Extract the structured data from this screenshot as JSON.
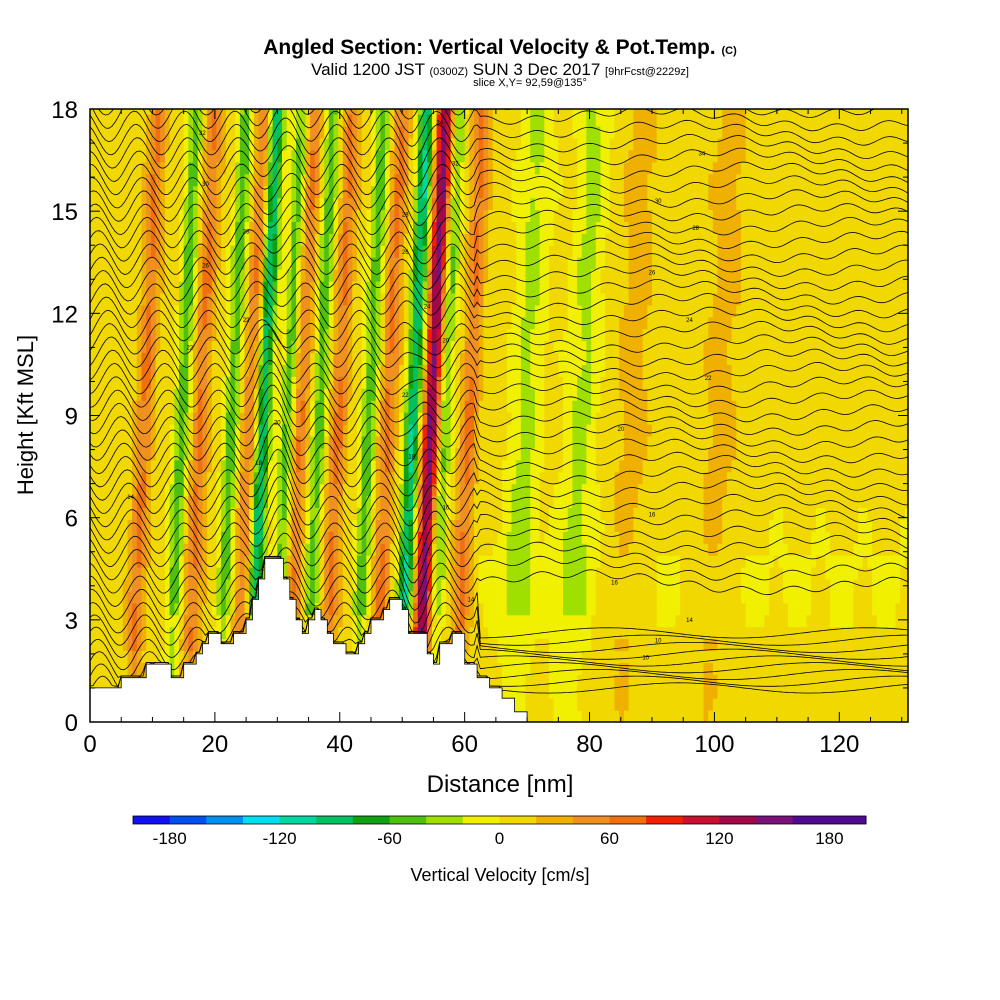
{
  "title": {
    "main": "Angled Section: Vertical Velocity & Pot.Temp.",
    "units_tag": "(C)"
  },
  "subtitle": {
    "valid_prefix": "Valid 1200 JST",
    "utc": "(0300Z)",
    "date": "SUN 3 Dec 2017",
    "forecast": "[9hrFcst@2229z]",
    "slice": "slice X,Y= 92,59@135°"
  },
  "chart_data": {
    "type": "heatmap",
    "title": "Angled Section: Vertical Velocity & Pot.Temp.",
    "xlabel": "Distance [nm]",
    "ylabel": "Height [Kft MSL]",
    "xlim": [
      0,
      131
    ],
    "ylim": [
      0,
      18
    ],
    "x_ticks": [
      0,
      20,
      40,
      60,
      80,
      100,
      120
    ],
    "y_ticks": [
      0,
      3,
      6,
      9,
      12,
      15,
      18
    ],
    "colorbar": {
      "label": "Vertical Velocity [cm/s]",
      "range": [
        -200,
        200
      ],
      "tick_values": [
        -180,
        -120,
        -60,
        0,
        60,
        120,
        180
      ],
      "tick_labels": [
        "-180",
        "-120",
        "-60",
        "0",
        "60",
        "120",
        "180"
      ],
      "colors": [
        "#1010f0",
        "#0050f0",
        "#0090f0",
        "#00e0f0",
        "#00d8a0",
        "#00c060",
        "#10a010",
        "#50c010",
        "#a0e000",
        "#f0f000",
        "#f0d800",
        "#f0b000",
        "#f09020",
        "#f07010",
        "#f02000",
        "#c81030",
        "#a00848",
        "#7a107a",
        "#500a90",
        "#500a90"
      ]
    },
    "updraft_bands_x_nm": [
      8,
      17,
      25,
      33,
      39,
      47,
      54,
      60,
      86,
      100
    ],
    "downdraft_bands_x_nm": [
      14,
      22,
      27,
      31,
      36,
      44,
      51,
      56,
      69,
      78
    ],
    "terrain": [
      [
        0,
        1
      ],
      [
        5,
        1
      ],
      [
        5,
        1.3
      ],
      [
        9,
        1.3
      ],
      [
        9,
        1.7
      ],
      [
        13,
        1.7
      ],
      [
        13,
        1.3
      ],
      [
        15,
        1.3
      ],
      [
        15,
        1.7
      ],
      [
        17,
        1.7
      ],
      [
        17,
        2
      ],
      [
        18,
        2
      ],
      [
        18,
        2.3
      ],
      [
        19,
        2.3
      ],
      [
        19,
        2.6
      ],
      [
        21,
        2.6
      ],
      [
        21,
        2.3
      ],
      [
        23,
        2.3
      ],
      [
        23,
        2.6
      ],
      [
        25,
        2.6
      ],
      [
        25,
        3
      ],
      [
        26,
        3
      ],
      [
        26,
        3.6
      ],
      [
        27,
        3.6
      ],
      [
        27,
        4.2
      ],
      [
        28,
        4.2
      ],
      [
        28,
        4.8
      ],
      [
        31,
        4.8
      ],
      [
        31,
        4.2
      ],
      [
        32,
        4.2
      ],
      [
        32,
        3.6
      ],
      [
        33,
        3.6
      ],
      [
        33,
        3
      ],
      [
        34,
        3
      ],
      [
        34,
        2.6
      ],
      [
        35,
        2.6
      ],
      [
        35,
        3
      ],
      [
        36,
        3
      ],
      [
        36,
        3.3
      ],
      [
        37,
        3.3
      ],
      [
        37,
        3
      ],
      [
        38,
        3
      ],
      [
        38,
        2.6
      ],
      [
        39,
        2.6
      ],
      [
        39,
        2.3
      ],
      [
        41,
        2.3
      ],
      [
        41,
        2
      ],
      [
        43,
        2
      ],
      [
        43,
        2.3
      ],
      [
        44,
        2.3
      ],
      [
        44,
        2.6
      ],
      [
        45,
        2.6
      ],
      [
        45,
        3
      ],
      [
        47,
        3
      ],
      [
        47,
        3.3
      ],
      [
        48,
        3.3
      ],
      [
        48,
        3.6
      ],
      [
        50,
        3.6
      ],
      [
        50,
        3.3
      ],
      [
        51,
        3.3
      ],
      [
        51,
        2.6
      ],
      [
        54,
        2.6
      ],
      [
        54,
        2
      ],
      [
        55,
        2
      ],
      [
        55,
        1.7
      ],
      [
        56,
        1.7
      ],
      [
        56,
        2.3
      ],
      [
        58,
        2.3
      ],
      [
        58,
        2.6
      ],
      [
        60,
        2.6
      ],
      [
        60,
        1.7
      ],
      [
        62,
        1.7
      ],
      [
        62,
        1.3
      ],
      [
        64,
        1.3
      ],
      [
        64,
        1
      ],
      [
        66,
        1
      ],
      [
        66,
        0.7
      ],
      [
        68,
        0.7
      ],
      [
        68,
        0.3
      ],
      [
        70,
        0.3
      ],
      [
        70,
        0
      ],
      [
        131,
        0
      ]
    ],
    "theta_contour_labels": [
      {
        "text": "14",
        "x": 6.5,
        "y": 6.6
      },
      {
        "text": "18",
        "x": 27,
        "y": 7.6
      },
      {
        "text": "18",
        "x": 51.5,
        "y": 7.8
      },
      {
        "text": "16",
        "x": 57,
        "y": 6.3
      },
      {
        "text": "16",
        "x": 90,
        "y": 6.1
      },
      {
        "text": "14",
        "x": 61,
        "y": 3.6
      },
      {
        "text": "16",
        "x": 84,
        "y": 4.1
      },
      {
        "text": "14",
        "x": 96,
        "y": 3.0
      },
      {
        "text": "10",
        "x": 91,
        "y": 2.4
      },
      {
        "text": "10",
        "x": 89,
        "y": 1.9
      },
      {
        "text": "20",
        "x": 30,
        "y": 8.8
      },
      {
        "text": "20",
        "x": 85,
        "y": 8.6
      },
      {
        "text": "22",
        "x": 99,
        "y": 10.1
      },
      {
        "text": "20",
        "x": 57,
        "y": 11.2
      },
      {
        "text": "22",
        "x": 16,
        "y": 11.0
      },
      {
        "text": "22",
        "x": 25,
        "y": 11.8
      },
      {
        "text": "24",
        "x": 96,
        "y": 11.8
      },
      {
        "text": "26",
        "x": 18.5,
        "y": 13.4
      },
      {
        "text": "26",
        "x": 90,
        "y": 13.2
      },
      {
        "text": "28",
        "x": 25,
        "y": 14.4
      },
      {
        "text": "28",
        "x": 97,
        "y": 14.5
      },
      {
        "text": "30",
        "x": 18.5,
        "y": 15.8
      },
      {
        "text": "30",
        "x": 91,
        "y": 15.3
      },
      {
        "text": "32",
        "x": 18,
        "y": 17.3
      },
      {
        "text": "32",
        "x": 58.5,
        "y": 16.4
      },
      {
        "text": "34",
        "x": 98,
        "y": 16.7
      },
      {
        "text": "34",
        "x": 56,
        "y": 17.6
      },
      {
        "text": "22",
        "x": 50.5,
        "y": 9.6
      },
      {
        "text": "26",
        "x": 50.5,
        "y": 13.8
      },
      {
        "text": "28",
        "x": 50.5,
        "y": 14.9
      },
      {
        "text": "24",
        "x": 54,
        "y": 12.2
      }
    ]
  }
}
